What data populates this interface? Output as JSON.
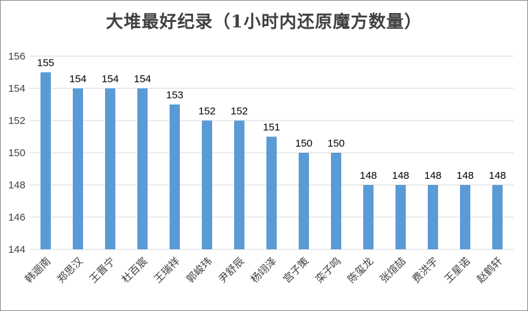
{
  "chart_data": {
    "type": "bar",
    "title": "大堆最好纪录（1小时内还原魔方数量）",
    "categories": [
      "韩逦南",
      "郑思汉",
      "王晋宁",
      "杜百宸",
      "王瑞祥",
      "郭峻玮",
      "尹舒辰",
      "杨翊泽",
      "宫子策",
      "栾子鸣",
      "陈玺龙",
      "张煊喆",
      "费洪宇",
      "王星诺",
      "赵鹤轩"
    ],
    "values": [
      155,
      154,
      154,
      154,
      153,
      152,
      152,
      151,
      150,
      150,
      148,
      148,
      148,
      148,
      148
    ],
    "ylim": [
      144,
      156
    ],
    "yticks": [
      144,
      146,
      148,
      150,
      152,
      154,
      156
    ],
    "xlabel": "",
    "ylabel": "",
    "grid": true,
    "bar_color": "#5b9bd5",
    "grid_color": "#d9d9d9"
  }
}
